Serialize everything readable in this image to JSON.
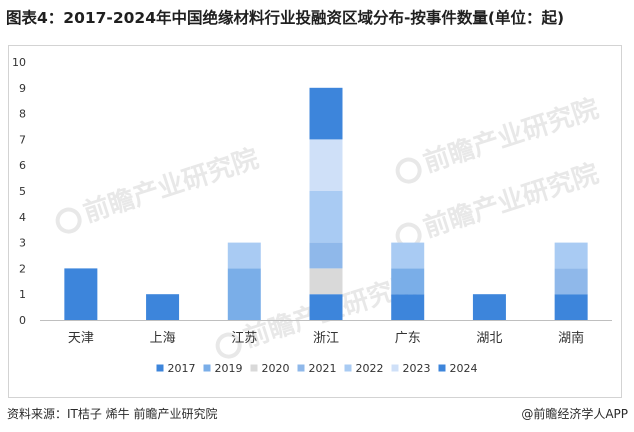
{
  "title": "图表4：2017-2024年中国绝缘材料行业投融资区域分布-按事件数量(单位：起)",
  "source": "资料来源：IT桔子 烯牛 前瞻产业研究院",
  "credit": "@前瞻经济学人APP",
  "watermark": "前瞻产业研究院",
  "chart_data": {
    "type": "bar",
    "stacked": true,
    "categories": [
      "天津",
      "上海",
      "江苏",
      "浙江",
      "广东",
      "湖北",
      "湖南"
    ],
    "series": [
      {
        "name": "2017",
        "color": "#3d85db",
        "values": [
          2,
          1,
          0,
          1,
          1,
          1,
          1
        ]
      },
      {
        "name": "2019",
        "color": "#7aaee8",
        "values": [
          0,
          0,
          2,
          0,
          1,
          0,
          0
        ]
      },
      {
        "name": "2020",
        "color": "#d9d9d9",
        "values": [
          0,
          0,
          0,
          1,
          0,
          0,
          0
        ]
      },
      {
        "name": "2021",
        "color": "#8fb8ea",
        "values": [
          0,
          0,
          0,
          1,
          0,
          0,
          1
        ]
      },
      {
        "name": "2022",
        "color": "#a9cbf3",
        "values": [
          0,
          0,
          1,
          2,
          1,
          0,
          1
        ]
      },
      {
        "name": "2023",
        "color": "#cfe0f8",
        "values": [
          0,
          0,
          0,
          2,
          0,
          0,
          0
        ]
      },
      {
        "name": "2024",
        "color": "#3d85db",
        "values": [
          0,
          0,
          0,
          2,
          0,
          0,
          0
        ]
      }
    ],
    "ylim": [
      0,
      10
    ],
    "yticks": [
      0,
      1,
      2,
      3,
      4,
      5,
      6,
      7,
      8,
      9,
      10
    ],
    "grid": false,
    "legend_position": "bottom"
  }
}
